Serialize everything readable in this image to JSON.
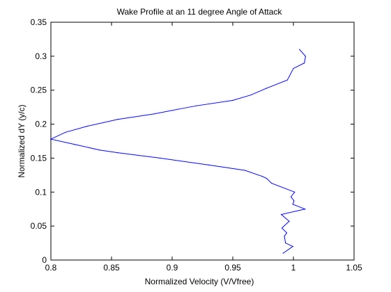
{
  "chart_data": {
    "type": "line",
    "title": "Wake Profile at an 11 degree Angle of Attack",
    "xlabel": "Normalized Velocity (V/Vfree)",
    "ylabel": "Normalized dY (y/c)",
    "xlim": [
      0.8,
      1.05
    ],
    "ylim": [
      0,
      0.35
    ],
    "grid": false,
    "x_ticks": [
      "0.8",
      "0.85",
      "0.9",
      "0.95",
      "1",
      "1.05"
    ],
    "y_ticks": [
      "0",
      "0.05",
      "0.1",
      "0.15",
      "0.2",
      "0.25",
      "0.3",
      "0.35"
    ],
    "series": [
      {
        "color": "#0000ff",
        "points": [
          [
            0.9915,
            0.01
          ],
          [
            0.9995,
            0.02
          ],
          [
            0.9935,
            0.025
          ],
          [
            0.9925,
            0.035
          ],
          [
            0.9945,
            0.04
          ],
          [
            0.9905,
            0.047
          ],
          [
            0.9965,
            0.057
          ],
          [
            0.99,
            0.067
          ],
          [
            1.0095,
            0.075
          ],
          [
            0.9995,
            0.082
          ],
          [
            1.0005,
            0.087
          ],
          [
            0.998,
            0.093
          ],
          [
            1.001,
            0.1
          ],
          [
            0.982,
            0.113
          ],
          [
            0.978,
            0.12
          ],
          [
            0.9745,
            0.123
          ],
          [
            0.96,
            0.132
          ],
          [
            0.93,
            0.14
          ],
          [
            0.89,
            0.15
          ],
          [
            0.855,
            0.158
          ],
          [
            0.84,
            0.162
          ],
          [
            0.82,
            0.17
          ],
          [
            0.8,
            0.178
          ],
          [
            0.812,
            0.188
          ],
          [
            0.83,
            0.197
          ],
          [
            0.855,
            0.207
          ],
          [
            0.885,
            0.215
          ],
          [
            0.905,
            0.222
          ],
          [
            0.92,
            0.227
          ],
          [
            0.95,
            0.235
          ],
          [
            0.965,
            0.243
          ],
          [
            0.978,
            0.253
          ],
          [
            0.995,
            0.265
          ],
          [
            1.0,
            0.282
          ],
          [
            1.009,
            0.29
          ],
          [
            1.01,
            0.3
          ],
          [
            1.005,
            0.31
          ]
        ]
      }
    ]
  }
}
